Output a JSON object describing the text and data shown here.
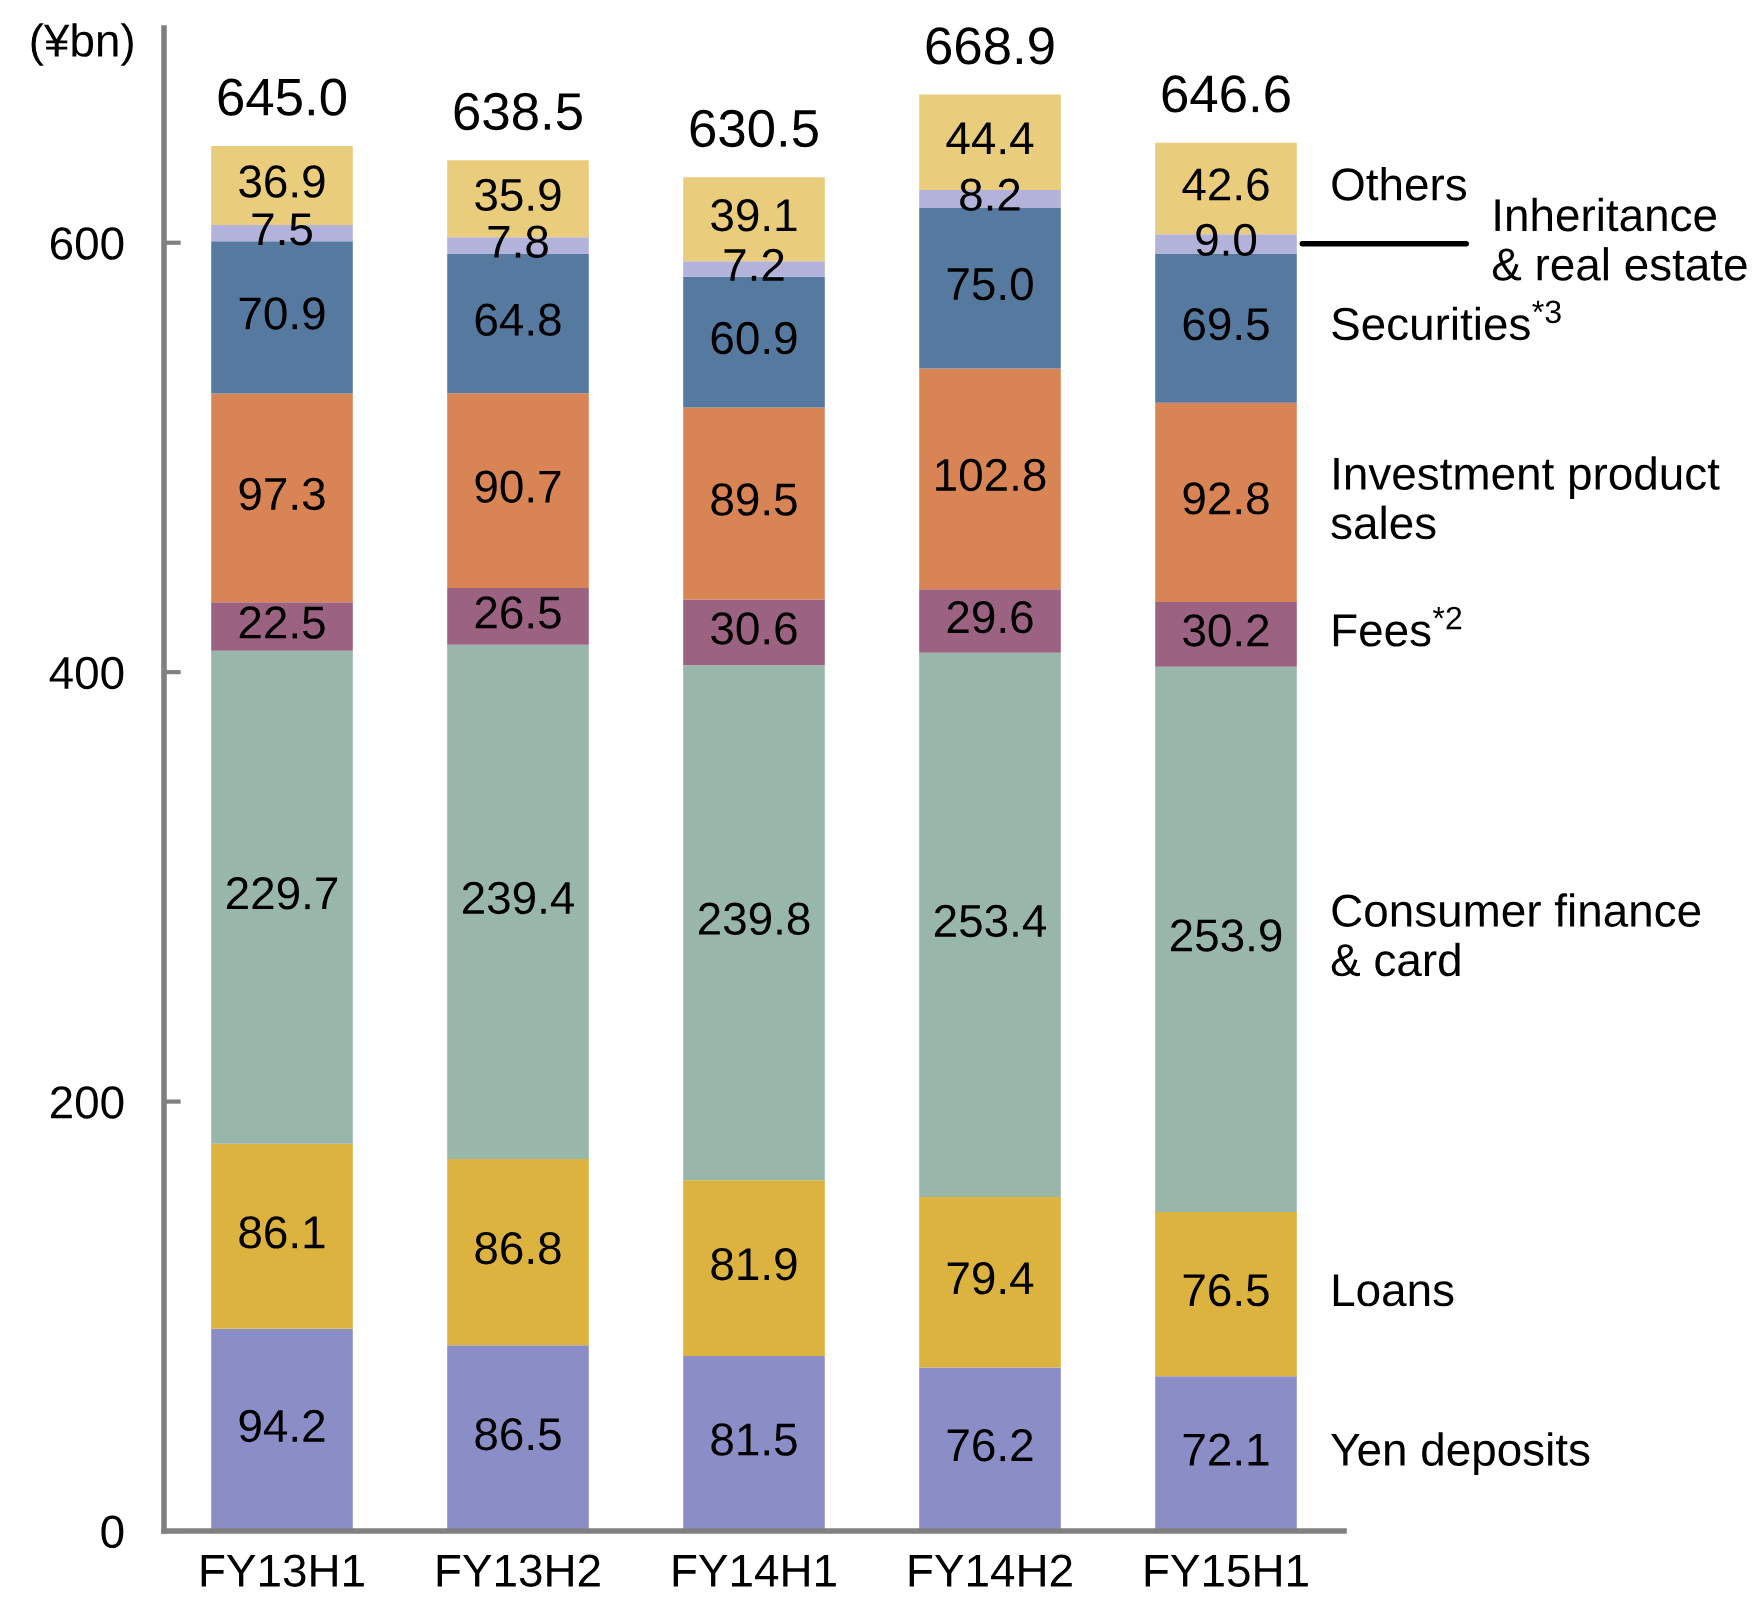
{
  "chart_data": {
    "type": "bar",
    "stacked": true,
    "ylabel": "(¥bn)",
    "categories": [
      "FY13H1",
      "FY13H2",
      "FY14H1",
      "FY14H2",
      "FY15H1"
    ],
    "ylim": [
      0,
      700
    ],
    "yticks": [
      0,
      200,
      400,
      600
    ],
    "series": [
      {
        "name": "Yen deposits",
        "color": "#8b8dc6",
        "values": [
          94.2,
          86.5,
          81.5,
          76.2,
          72.1
        ],
        "value_labels": [
          "94.2",
          "86.5",
          "81.5",
          "76.2",
          "72.1"
        ]
      },
      {
        "name": "Loans",
        "color": "#ddb33f",
        "values": [
          86.1,
          86.8,
          81.9,
          79.4,
          76.5
        ],
        "value_labels": [
          "86.1",
          "86.8",
          "81.9",
          "79.4",
          "76.5"
        ]
      },
      {
        "name": "Consumer finance\n& card",
        "color": "#98b6a9",
        "values": [
          229.7,
          239.4,
          239.8,
          253.4,
          253.9
        ],
        "value_labels": [
          "229.7",
          "239.4",
          "239.8",
          "253.4",
          "253.9"
        ]
      },
      {
        "name": "Fees$^{*2}$",
        "color": "#9b6282",
        "values": [
          22.5,
          26.5,
          30.6,
          29.6,
          30.2
        ],
        "value_labels": [
          "22.5",
          "26.5",
          "30.6",
          "29.6",
          "30.2"
        ]
      },
      {
        "name": "Investment product\nsales",
        "color": "#d98455",
        "values": [
          97.3,
          90.7,
          89.5,
          102.8,
          92.8
        ],
        "value_labels": [
          "97.3",
          "90.7",
          "89.5",
          "102.8",
          "92.8"
        ]
      },
      {
        "name": "Securities$^{*3}$",
        "color": "#56799f",
        "values": [
          70.9,
          64.8,
          60.9,
          75.0,
          69.5
        ],
        "value_labels": [
          "70.9",
          "64.8",
          "60.9",
          "75.0",
          "69.5"
        ]
      },
      {
        "name": "Inheritance\n& real estate",
        "color": "#b2b2da",
        "values": [
          7.5,
          7.8,
          7.2,
          8.2,
          9.0
        ],
        "value_labels": [
          "7.5",
          "7.8",
          "7.2",
          "8.2",
          "9.0"
        ]
      },
      {
        "name": "Others",
        "color": "#eacd7c",
        "values": [
          36.9,
          35.9,
          39.1,
          44.4,
          42.6
        ],
        "value_labels": [
          "36.9",
          "35.9",
          "39.1",
          "44.4",
          "42.6"
        ]
      }
    ],
    "totals": [
      "645.0",
      "638.5",
      "630.5",
      "668.9",
      "646.6"
    ]
  }
}
